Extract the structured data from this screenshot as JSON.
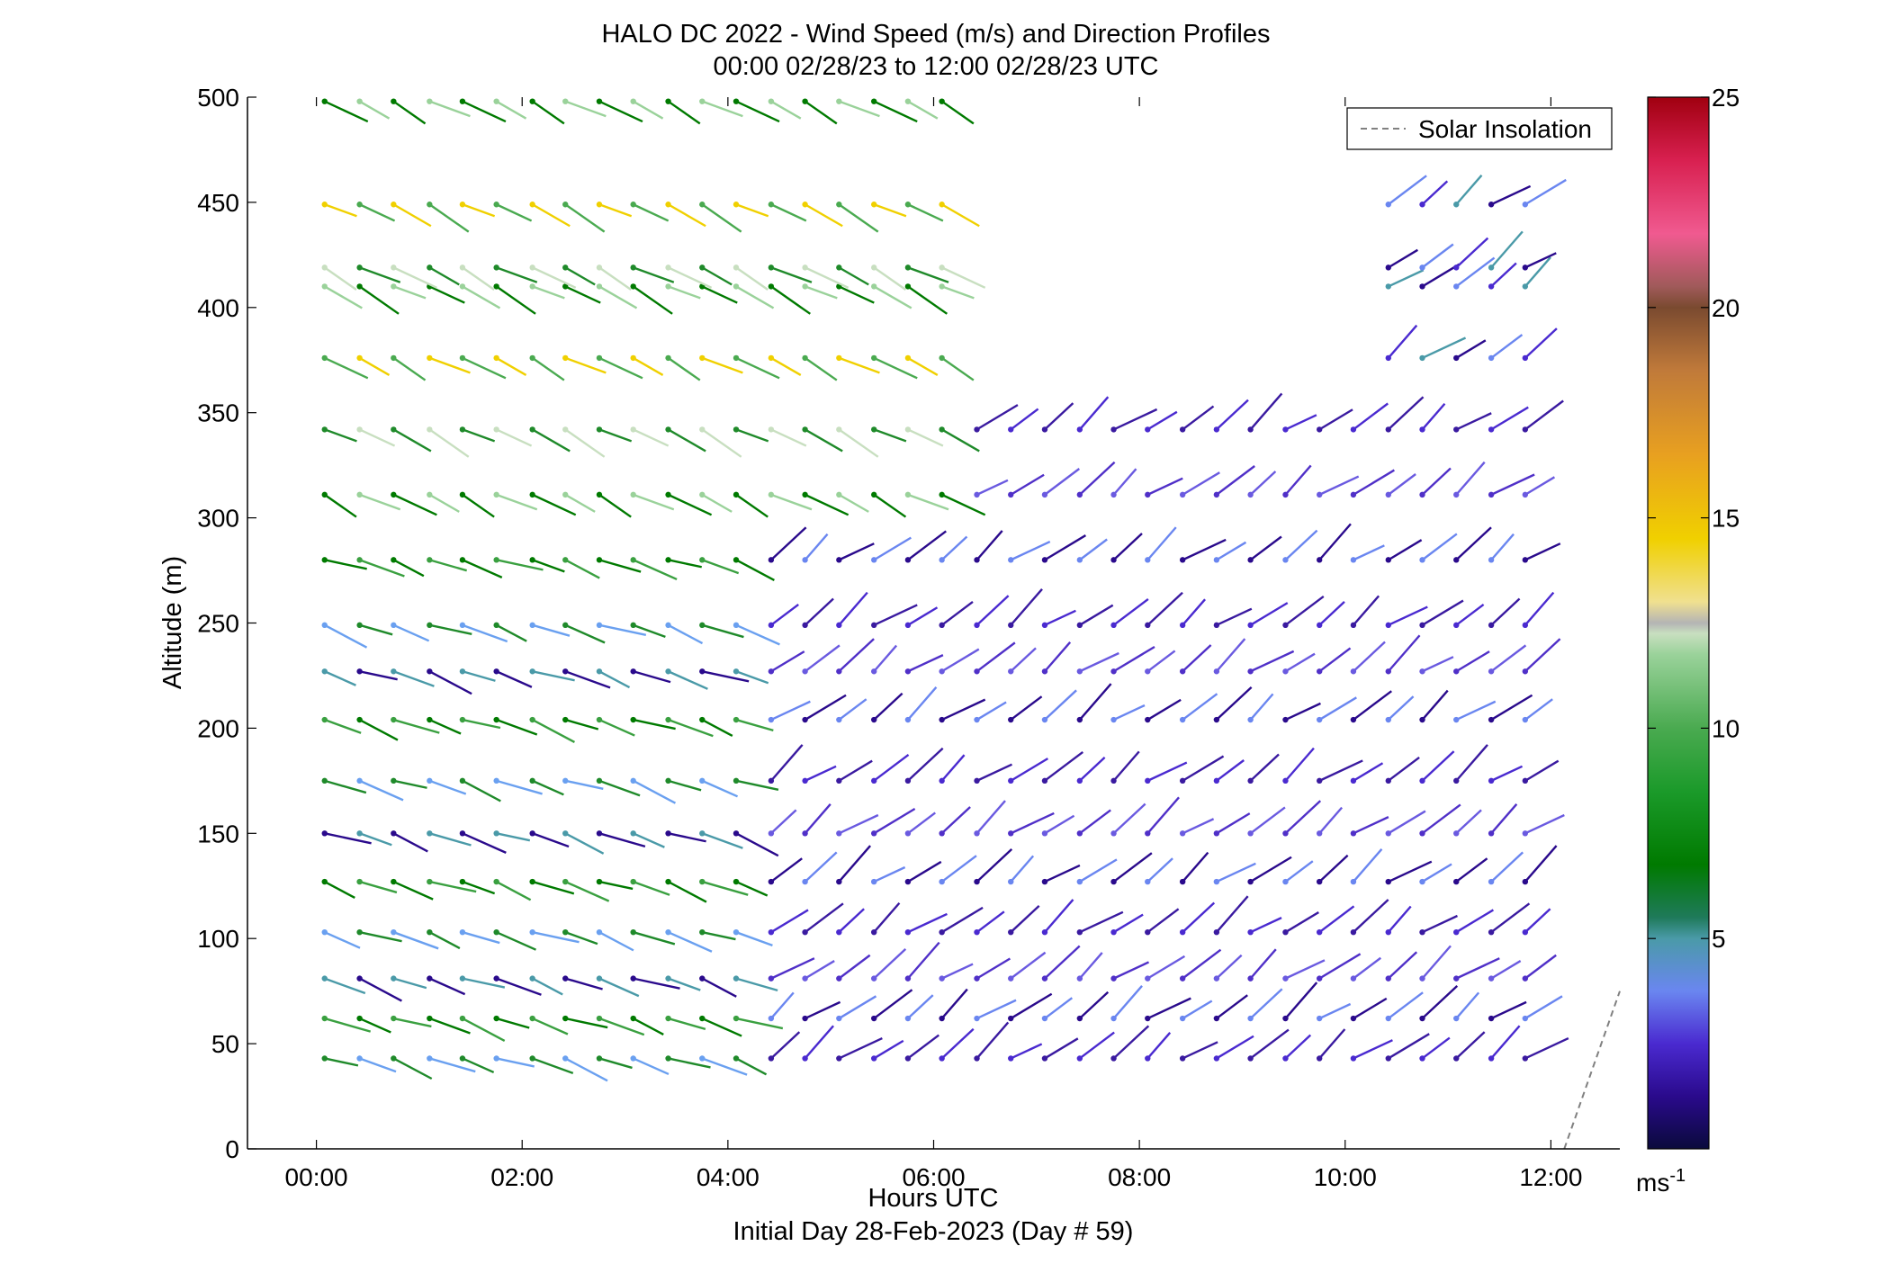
{
  "chart_data": {
    "type": "scatter",
    "title": "HALO DC 2022 - Wind Speed (m/s) and Direction Profiles",
    "subtitle": "00:00 02/28/23 to 12:00 02/28/23  UTC",
    "xlabel": "Hours UTC",
    "xlabel2": "Initial Day 28-Feb-2023 (Day # 59)",
    "ylabel": "Altitude (m)",
    "xlim": [
      -0.67,
      12.67
    ],
    "ylim": [
      0,
      500
    ],
    "x_ticks": [
      0,
      2,
      4,
      6,
      8,
      10,
      12
    ],
    "x_tick_labels": [
      "00:00",
      "02:00",
      "04:00",
      "06:00",
      "08:00",
      "10:00",
      "12:00"
    ],
    "y_ticks": [
      0,
      50,
      100,
      150,
      200,
      250,
      300,
      350,
      400,
      450,
      500
    ],
    "y_tick_labels": [
      "0",
      "50",
      "100",
      "150",
      "200",
      "250",
      "300",
      "350",
      "400",
      "450",
      "500"
    ],
    "legend": {
      "label": "Solar Insolation",
      "position": "top-right",
      "style": "dashed",
      "color": "#808080"
    },
    "colorbar": {
      "range": [
        0,
        25
      ],
      "ticks": [
        5,
        10,
        15,
        20,
        25
      ],
      "tick_labels": [
        "5",
        "10",
        "15",
        "20",
        "25"
      ],
      "unit_base": "ms",
      "unit_exp": "-1"
    },
    "solar_insolation": {
      "x": [
        12.13,
        12.67
      ],
      "y": [
        0,
        75
      ]
    },
    "wind_profiles": {
      "altitudes": [
        43,
        62,
        81,
        103,
        127,
        150,
        175,
        204,
        227,
        249,
        280,
        311,
        342,
        376,
        410,
        419,
        449,
        498
      ],
      "times": [
        0.08,
        0.42,
        0.75,
        1.1,
        1.42,
        1.75,
        2.1,
        2.42,
        2.75,
        3.08,
        3.42,
        3.75,
        4.08,
        4.42,
        4.75,
        5.08,
        5.42,
        5.75,
        6.08,
        6.42,
        6.75,
        7.08,
        7.42,
        7.75,
        8.08,
        8.42,
        8.75,
        9.08,
        9.42,
        9.75,
        10.08,
        10.42,
        10.75,
        11.08,
        11.42,
        11.75
      ],
      "schemes": [
        {
          "name": "early-low",
          "t_from": 0,
          "t_to": 4.4,
          "alt_from": 0,
          "alt_to": 280
        },
        {
          "name": "early-high",
          "t_from": 0,
          "t_to": 6.1,
          "alt_from": 300,
          "alt_to": 500
        },
        {
          "name": "late-low",
          "t_from": 4.4,
          "t_to": 12,
          "alt_from": 0,
          "alt_to": 360
        },
        {
          "name": "late-high",
          "t_from": 10.3,
          "t_to": 12,
          "alt_from": 370,
          "alt_to": 460
        }
      ]
    }
  }
}
